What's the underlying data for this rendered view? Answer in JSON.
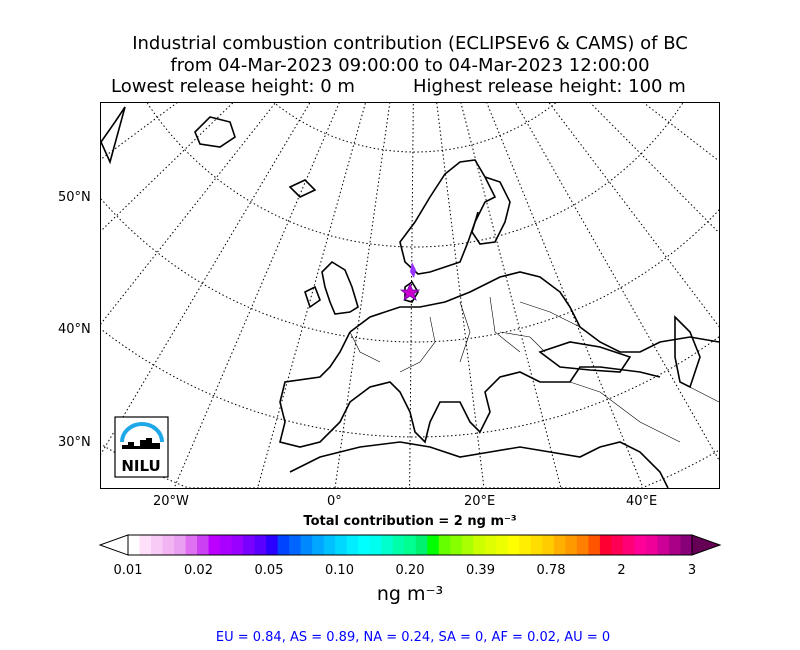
{
  "title": {
    "line1": "Industrial combustion contribution (ECLIPSEv6 & CAMS) of BC",
    "line2": "from 04-Mar-2023 09:00:00 to 04-Mar-2023 12:00:00",
    "lowest": "Lowest release height: 0 m",
    "highest": "Highest release height: 100 m"
  },
  "map": {
    "lat_labels": [
      "50°N",
      "40°N",
      "30°N"
    ],
    "lon_labels": [
      "20°W",
      "0°",
      "20°E",
      "40°E"
    ],
    "release_marker": {
      "icon": "star-icon",
      "color": "#cc00cc"
    },
    "logo": "NILU"
  },
  "colorbar": {
    "title": "Total contribution = 2 ng m⁻³",
    "ticks": [
      "0.01",
      "0.02",
      "0.05",
      "0.10",
      "0.20",
      "0.39",
      "0.78",
      "2",
      "3"
    ],
    "unit": "ng m⁻³",
    "colors": [
      "#ffffff",
      "#ffe0fa",
      "#f8caf6",
      "#f2b4f2",
      "#eaa0f2",
      "#e070f2",
      "#cc40f4",
      "#bb00ff",
      "#aa00ff",
      "#9900ff",
      "#7a00ff",
      "#5a00ff",
      "#2a00ff",
      "#0044ff",
      "#0066ff",
      "#0088ff",
      "#00a6ff",
      "#00c0ff",
      "#00d8ff",
      "#00eeff",
      "#00ffff",
      "#00ffee",
      "#00ffcc",
      "#00ffaa",
      "#00ff90",
      "#00f070",
      "#00ff00",
      "#66ff00",
      "#88ff00",
      "#aaff00",
      "#ccff00",
      "#ddff00",
      "#eeff00",
      "#ffff00",
      "#ffee00",
      "#ffdd00",
      "#ffcc00",
      "#ffb000",
      "#ff9900",
      "#ff8000",
      "#ff5500",
      "#ff0033",
      "#ff0055",
      "#ff0077",
      "#ff0099",
      "#ee0099",
      "#cc0099",
      "#aa0088",
      "#880077"
    ],
    "over_color": "#660055"
  },
  "footer": "EU = 0.84,  AS = 0.89,  NA = 0.24,  SA = 0,  AF = 0.02,  AU = 0"
}
